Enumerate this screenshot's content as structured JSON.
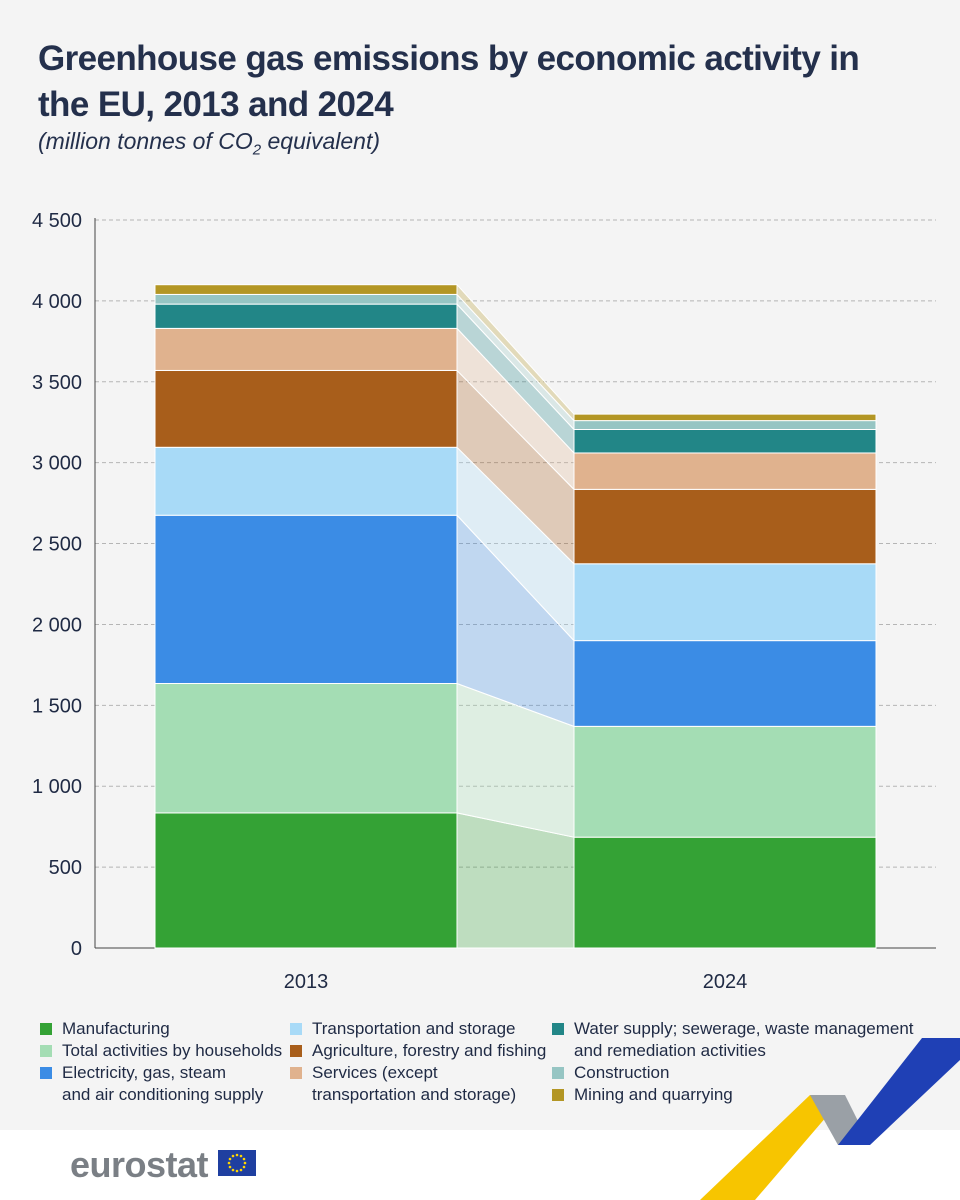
{
  "title": "Greenhouse gas emissions by economic activity in the EU, 2013 and 2024",
  "subtitle_prefix": "(million tonnes of CO",
  "subtitle_sub": "2",
  "subtitle_suffix": " equivalent)",
  "brand": "eurostat",
  "chart_data": {
    "type": "bar",
    "stacked": true,
    "categories": [
      "2013",
      "2024"
    ],
    "ylim": [
      0,
      4500
    ],
    "yticks": [
      0,
      500,
      1000,
      1500,
      2000,
      2500,
      3000,
      3500,
      4000,
      4500
    ],
    "ytick_labels": [
      "0",
      "500",
      "1 000",
      "1 500",
      "2 000",
      "2 500",
      "3 000",
      "3 500",
      "4 000",
      "4 500"
    ],
    "grid": true,
    "legend_position": "bottom",
    "series": [
      {
        "name": "Manufacturing",
        "color": "#34a235",
        "values": [
          835,
          685
        ]
      },
      {
        "name": "Total activities by households",
        "color": "#a4ddb4",
        "values": [
          800,
          685
        ]
      },
      {
        "name": "Electricity, gas, steam and air conditioning supply",
        "color": "#3b8ce5",
        "values": [
          1040,
          530
        ]
      },
      {
        "name": "Transportation and storage",
        "color": "#a8daf7",
        "values": [
          420,
          475
        ]
      },
      {
        "name": "Agriculture, forestry and fishing",
        "color": "#a85e1b",
        "values": [
          475,
          460
        ]
      },
      {
        "name": "Services (except transportation and storage)",
        "color": "#e0b28e",
        "values": [
          260,
          225
        ]
      },
      {
        "name": "Water supply; sewerage, waste management and remediation activities",
        "color": "#228687",
        "values": [
          150,
          145
        ]
      },
      {
        "name": "Construction",
        "color": "#96c5c3",
        "values": [
          60,
          55
        ]
      },
      {
        "name": "Mining and quarrying",
        "color": "#b39624",
        "values": [
          60,
          40
        ]
      }
    ]
  },
  "legend": {
    "col1": [
      {
        "line1": "Manufacturing",
        "line2": ""
      },
      {
        "line1": "Total activities by households",
        "line2": ""
      },
      {
        "line1": "Electricity, gas, steam",
        "line2": "and air conditioning supply"
      }
    ],
    "col2": [
      {
        "line1": "Transportation and storage",
        "line2": ""
      },
      {
        "line1": "Agriculture, forestry and fishing",
        "line2": ""
      },
      {
        "line1": "Services (except",
        "line2": "transportation and storage)"
      }
    ],
    "col3": [
      {
        "line1": "Water supply; sewerage, waste management",
        "line2": "and remediation activities"
      },
      {
        "line1": "Construction",
        "line2": ""
      },
      {
        "line1": "Mining and quarrying",
        "line2": ""
      }
    ]
  }
}
